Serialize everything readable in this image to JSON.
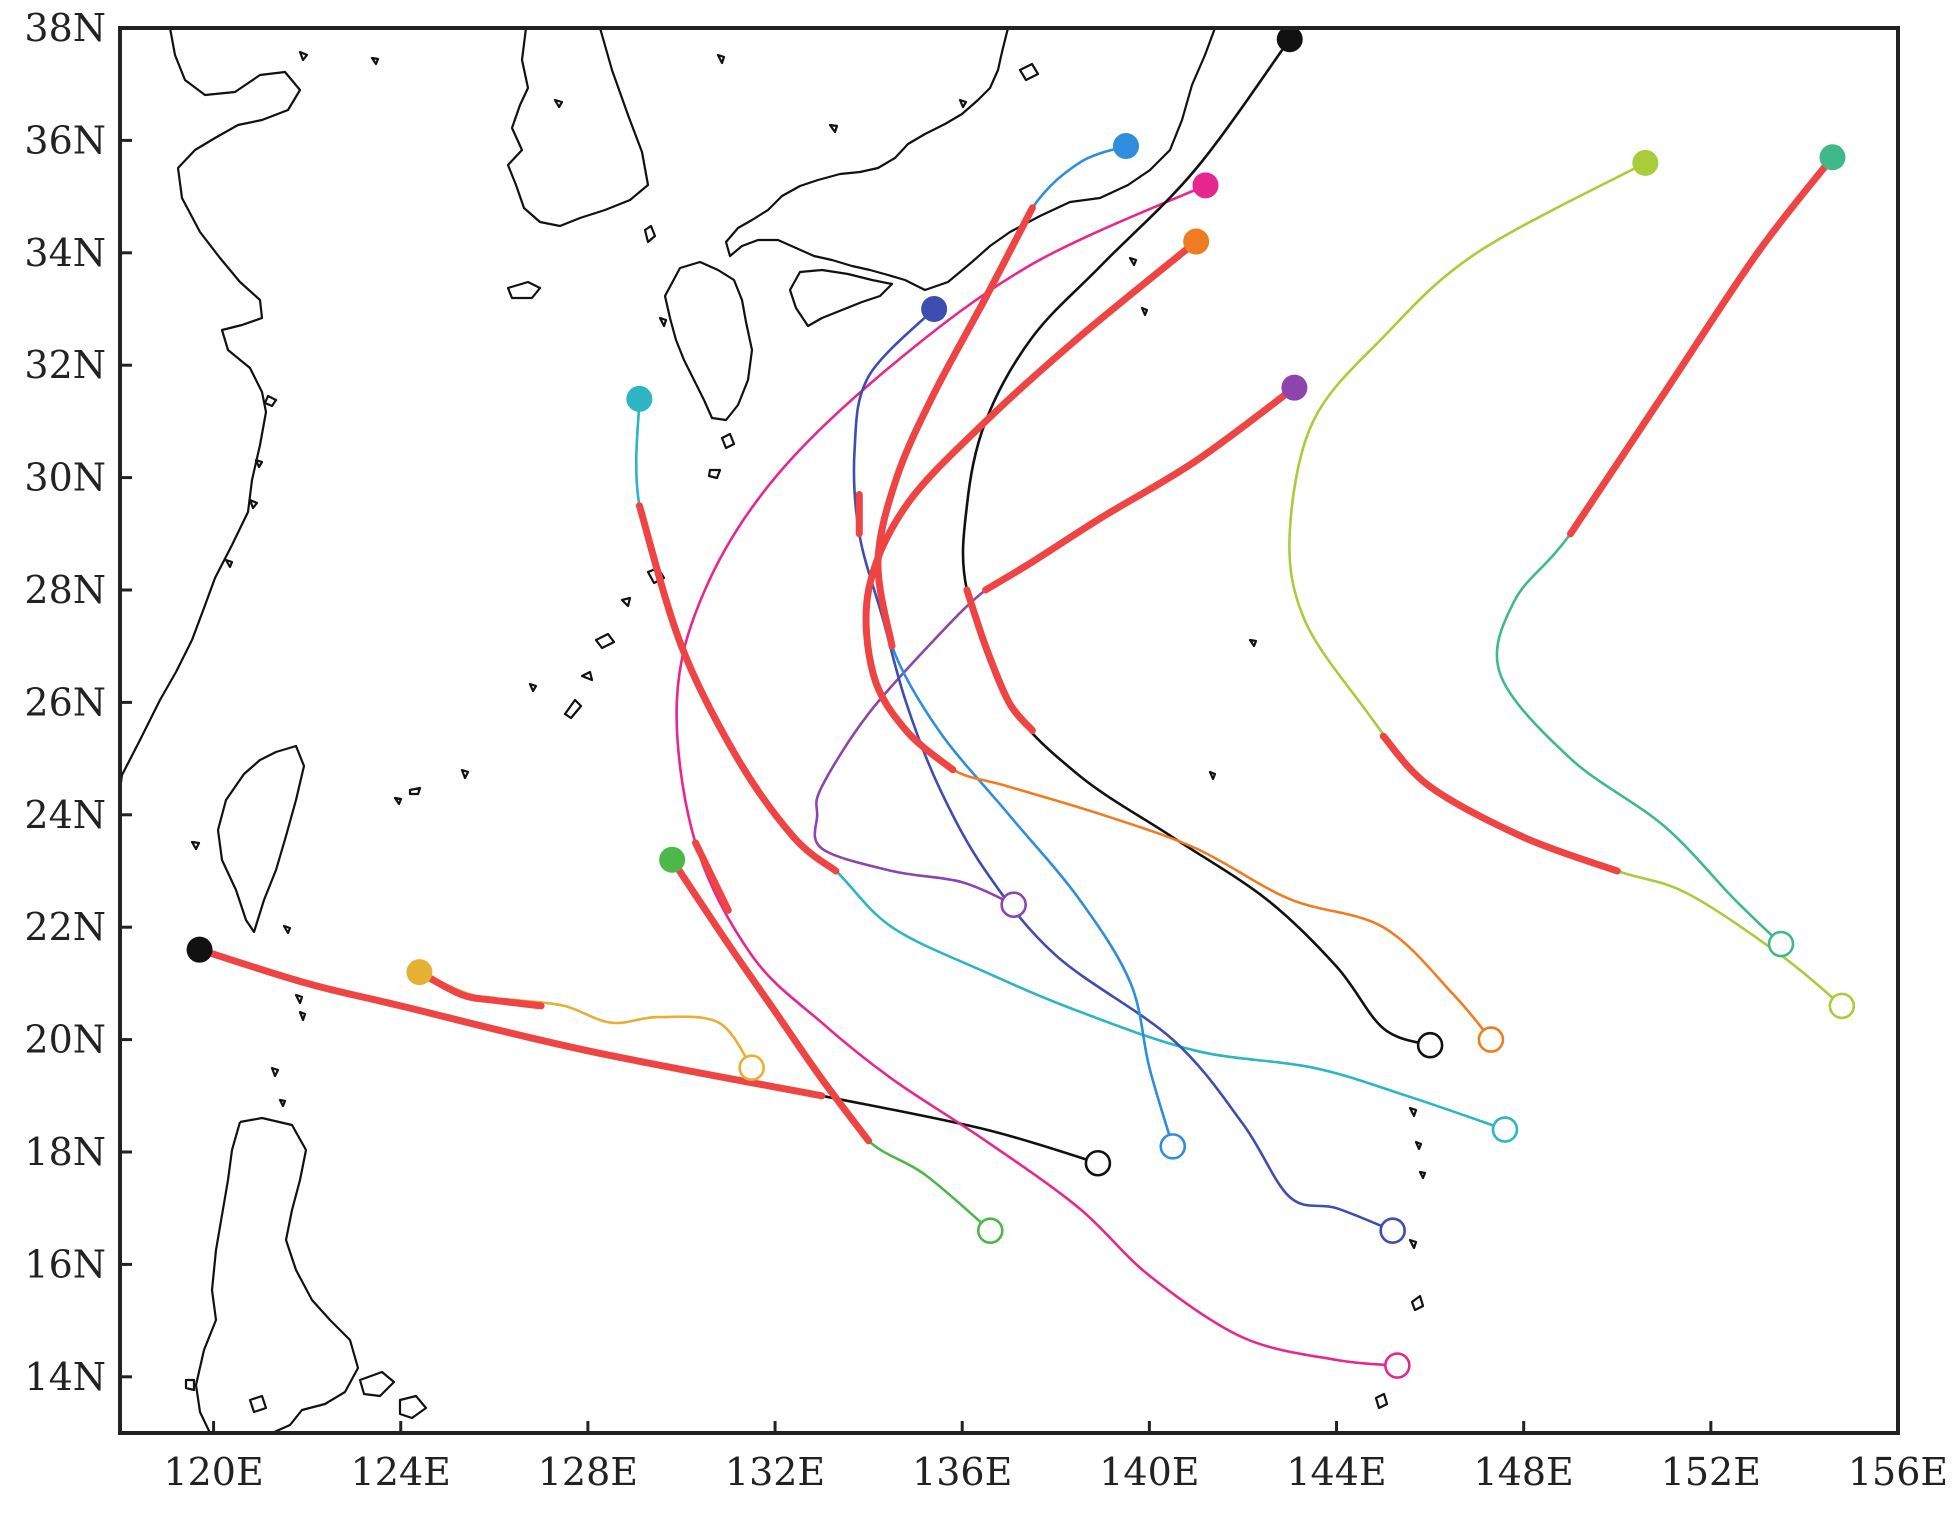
{
  "map": {
    "lon_range": [
      118,
      156
    ],
    "lat_range": [
      13,
      38
    ],
    "lon_ticks": [
      {
        "value": 120,
        "label": "120E"
      },
      {
        "value": 124,
        "label": "124E"
      },
      {
        "value": 128,
        "label": "128E"
      },
      {
        "value": 132,
        "label": "132E"
      },
      {
        "value": 136,
        "label": "136E"
      },
      {
        "value": 140,
        "label": "140E"
      },
      {
        "value": 144,
        "label": "144E"
      },
      {
        "value": 148,
        "label": "148E"
      },
      {
        "value": 152,
        "label": "152E"
      },
      {
        "value": 156,
        "label": "156E"
      }
    ],
    "lat_ticks": [
      {
        "value": 14,
        "label": "14N"
      },
      {
        "value": 16,
        "label": "16N"
      },
      {
        "value": 18,
        "label": "18N"
      },
      {
        "value": 20,
        "label": "20N"
      },
      {
        "value": 22,
        "label": "22N"
      },
      {
        "value": 24,
        "label": "24N"
      },
      {
        "value": 26,
        "label": "26N"
      },
      {
        "value": 28,
        "label": "28N"
      },
      {
        "value": 30,
        "label": "30N"
      },
      {
        "value": 32,
        "label": "32N"
      },
      {
        "value": 34,
        "label": "34N"
      },
      {
        "value": 36,
        "label": "36N"
      },
      {
        "value": 38,
        "label": "38N"
      }
    ],
    "intense_segment_color": "#ee4444"
  },
  "tracks": [
    {
      "color": "#111111",
      "points": [
        [
          138.9,
          17.8
        ],
        [
          136.5,
          18.4
        ],
        [
          133.0,
          19.0
        ],
        [
          128.0,
          19.8
        ],
        [
          124.0,
          20.6
        ],
        [
          122.0,
          21.0
        ],
        [
          119.7,
          21.6
        ]
      ],
      "intense": [
        [
          133.0,
          19.0
        ],
        [
          128.0,
          19.8
        ],
        [
          124.0,
          20.6
        ],
        [
          122.0,
          21.0
        ],
        [
          119.7,
          21.6
        ]
      ]
    },
    {
      "color": "#e6b035",
      "points": [
        [
          131.5,
          19.5
        ],
        [
          130.8,
          20.3
        ],
        [
          129.5,
          20.4
        ],
        [
          128.5,
          20.3
        ],
        [
          127.5,
          20.6
        ],
        [
          126.5,
          20.7
        ],
        [
          125.5,
          20.8
        ],
        [
          124.4,
          21.2
        ]
      ],
      "intense": [
        [
          127.0,
          20.6
        ],
        [
          126.0,
          20.7
        ],
        [
          125.3,
          20.8
        ],
        [
          124.4,
          21.2
        ]
      ]
    },
    {
      "color": "#4cb848",
      "points": [
        [
          136.6,
          16.6
        ],
        [
          135.2,
          17.6
        ],
        [
          134.0,
          18.2
        ],
        [
          133.0,
          19.3
        ],
        [
          132.0,
          20.5
        ],
        [
          131.0,
          21.7
        ],
        [
          129.8,
          23.2
        ]
      ],
      "intense": [
        [
          134.0,
          18.2
        ],
        [
          133.0,
          19.3
        ],
        [
          132.0,
          20.5
        ],
        [
          131.0,
          21.7
        ],
        [
          129.8,
          23.2
        ]
      ]
    },
    {
      "color": "#e8268f",
      "points": [
        [
          145.3,
          14.2
        ],
        [
          144.0,
          14.3
        ],
        [
          142.0,
          14.7
        ],
        [
          140.0,
          15.8
        ],
        [
          138.5,
          17.0
        ],
        [
          136.5,
          18.2
        ],
        [
          134.5,
          19.3
        ],
        [
          133.0,
          20.3
        ],
        [
          131.5,
          21.5
        ],
        [
          130.3,
          23.5
        ],
        [
          129.9,
          26.0
        ],
        [
          130.5,
          28.0
        ],
        [
          132.0,
          30.0
        ],
        [
          134.5,
          32.0
        ],
        [
          137.5,
          33.8
        ],
        [
          141.2,
          35.2
        ]
      ],
      "intense": [
        [
          131.0,
          22.3
        ],
        [
          130.3,
          23.5
        ]
      ]
    },
    {
      "color": "#2bb5c5",
      "points": [
        [
          147.6,
          18.4
        ],
        [
          145.5,
          19.0
        ],
        [
          143.5,
          19.5
        ],
        [
          141.0,
          19.8
        ],
        [
          138.5,
          20.5
        ],
        [
          136.5,
          21.2
        ],
        [
          134.5,
          22.0
        ],
        [
          133.3,
          23.0
        ],
        [
          132.4,
          23.6
        ],
        [
          131.2,
          25.0
        ],
        [
          130.0,
          27.0
        ],
        [
          129.1,
          29.5
        ],
        [
          129.1,
          31.4
        ]
      ],
      "intense": [
        [
          133.3,
          23.0
        ],
        [
          132.4,
          23.6
        ],
        [
          131.2,
          25.0
        ],
        [
          130.0,
          27.0
        ],
        [
          129.1,
          29.5
        ]
      ]
    },
    {
      "color": "#8e44ad",
      "points": [
        [
          137.1,
          22.4
        ],
        [
          136.0,
          22.8
        ],
        [
          134.5,
          23.0
        ],
        [
          133.0,
          23.4
        ],
        [
          132.9,
          24.0
        ],
        [
          133.0,
          24.5
        ],
        [
          134.0,
          25.8
        ],
        [
          135.5,
          27.2
        ],
        [
          136.5,
          28.0
        ],
        [
          137.5,
          28.5
        ],
        [
          139.0,
          29.3
        ],
        [
          141.0,
          30.3
        ],
        [
          143.1,
          31.6
        ]
      ],
      "intense": [
        [
          136.5,
          28.0
        ],
        [
          137.5,
          28.5
        ],
        [
          139.0,
          29.3
        ],
        [
          141.0,
          30.3
        ],
        [
          143.1,
          31.6
        ]
      ]
    },
    {
      "color": "#3d4db0",
      "points": [
        [
          145.2,
          16.6
        ],
        [
          144.0,
          17.0
        ],
        [
          143.0,
          17.2
        ],
        [
          142.0,
          18.5
        ],
        [
          140.5,
          20.0
        ],
        [
          138.0,
          21.5
        ],
        [
          136.5,
          23.0
        ],
        [
          135.5,
          24.5
        ],
        [
          134.8,
          26.0
        ],
        [
          134.3,
          27.5
        ],
        [
          133.8,
          29.0
        ],
        [
          133.7,
          30.5
        ],
        [
          134.0,
          31.8
        ],
        [
          135.4,
          33.0
        ]
      ],
      "intense": [
        [
          133.8,
          29.0
        ],
        [
          133.8,
          29.7
        ]
      ]
    },
    {
      "color": "#2e8ddc",
      "points": [
        [
          140.5,
          18.1
        ],
        [
          140.0,
          19.5
        ],
        [
          139.6,
          21.0
        ],
        [
          138.5,
          22.5
        ],
        [
          137.0,
          24.0
        ],
        [
          135.5,
          25.5
        ],
        [
          134.5,
          27.0
        ],
        [
          134.2,
          28.5
        ],
        [
          134.6,
          30.0
        ],
        [
          135.4,
          31.5
        ],
        [
          136.5,
          33.2
        ],
        [
          137.5,
          34.8
        ],
        [
          138.5,
          35.6
        ],
        [
          139.5,
          35.9
        ]
      ],
      "intense": [
        [
          134.5,
          27.0
        ],
        [
          134.2,
          28.5
        ],
        [
          134.6,
          30.0
        ],
        [
          135.4,
          31.5
        ],
        [
          136.5,
          33.2
        ],
        [
          137.5,
          34.8
        ]
      ]
    },
    {
      "color": "#111111",
      "points": [
        [
          146.0,
          19.9
        ],
        [
          145.0,
          20.2
        ],
        [
          144.0,
          21.3
        ],
        [
          142.5,
          22.5
        ],
        [
          140.5,
          23.6
        ],
        [
          138.5,
          24.7
        ],
        [
          137.0,
          26.0
        ],
        [
          136.1,
          28.0
        ],
        [
          136.1,
          29.5
        ],
        [
          136.5,
          31.0
        ],
        [
          137.5,
          32.5
        ],
        [
          139.0,
          33.8
        ],
        [
          141.0,
          35.5
        ],
        [
          143.0,
          37.8
        ]
      ],
      "intense": [
        [
          137.5,
          25.5
        ],
        [
          137.0,
          26.0
        ],
        [
          136.5,
          27.0
        ],
        [
          136.1,
          28.0
        ]
      ]
    },
    {
      "color": "#f07c22",
      "points": [
        [
          147.3,
          20.0
        ],
        [
          146.5,
          20.8
        ],
        [
          145.0,
          22.0
        ],
        [
          143.0,
          22.5
        ],
        [
          141.0,
          23.4
        ],
        [
          139.0,
          24.0
        ],
        [
          137.0,
          24.5
        ],
        [
          135.8,
          24.8
        ],
        [
          134.8,
          25.5
        ],
        [
          134.1,
          26.5
        ],
        [
          134.0,
          28.0
        ],
        [
          134.8,
          29.5
        ],
        [
          136.5,
          31.0
        ],
        [
          138.5,
          32.5
        ],
        [
          141.0,
          34.2
        ]
      ],
      "intense": [
        [
          135.8,
          24.8
        ],
        [
          134.8,
          25.5
        ],
        [
          134.1,
          26.5
        ],
        [
          134.0,
          28.0
        ],
        [
          134.8,
          29.5
        ],
        [
          136.5,
          31.0
        ],
        [
          138.5,
          32.5
        ],
        [
          141.0,
          34.2
        ]
      ]
    },
    {
      "color": "#a8cc3a",
      "points": [
        [
          154.8,
          20.6
        ],
        [
          153.5,
          21.5
        ],
        [
          151.5,
          22.6
        ],
        [
          150.0,
          23.0
        ],
        [
          148.0,
          23.6
        ],
        [
          146.0,
          24.5
        ],
        [
          144.5,
          26.0
        ],
        [
          143.3,
          27.5
        ],
        [
          143.0,
          29.0
        ],
        [
          143.5,
          31.0
        ],
        [
          145.0,
          32.5
        ],
        [
          147.0,
          34.0
        ],
        [
          150.6,
          35.6
        ]
      ],
      "intense": [
        [
          150.0,
          23.0
        ],
        [
          148.0,
          23.6
        ],
        [
          146.0,
          24.5
        ],
        [
          145.0,
          25.4
        ]
      ]
    },
    {
      "color": "#3fb98a",
      "points": [
        [
          153.5,
          21.7
        ],
        [
          152.5,
          22.5
        ],
        [
          151.0,
          23.8
        ],
        [
          149.0,
          25.0
        ],
        [
          147.5,
          26.5
        ],
        [
          147.8,
          27.8
        ],
        [
          149.0,
          29.0
        ],
        [
          151.0,
          31.5
        ],
        [
          153.0,
          34.0
        ],
        [
          154.6,
          35.7
        ]
      ],
      "intense": [
        [
          149.0,
          29.0
        ],
        [
          151.0,
          31.5
        ],
        [
          153.0,
          34.0
        ],
        [
          154.6,
          35.7
        ]
      ]
    }
  ]
}
